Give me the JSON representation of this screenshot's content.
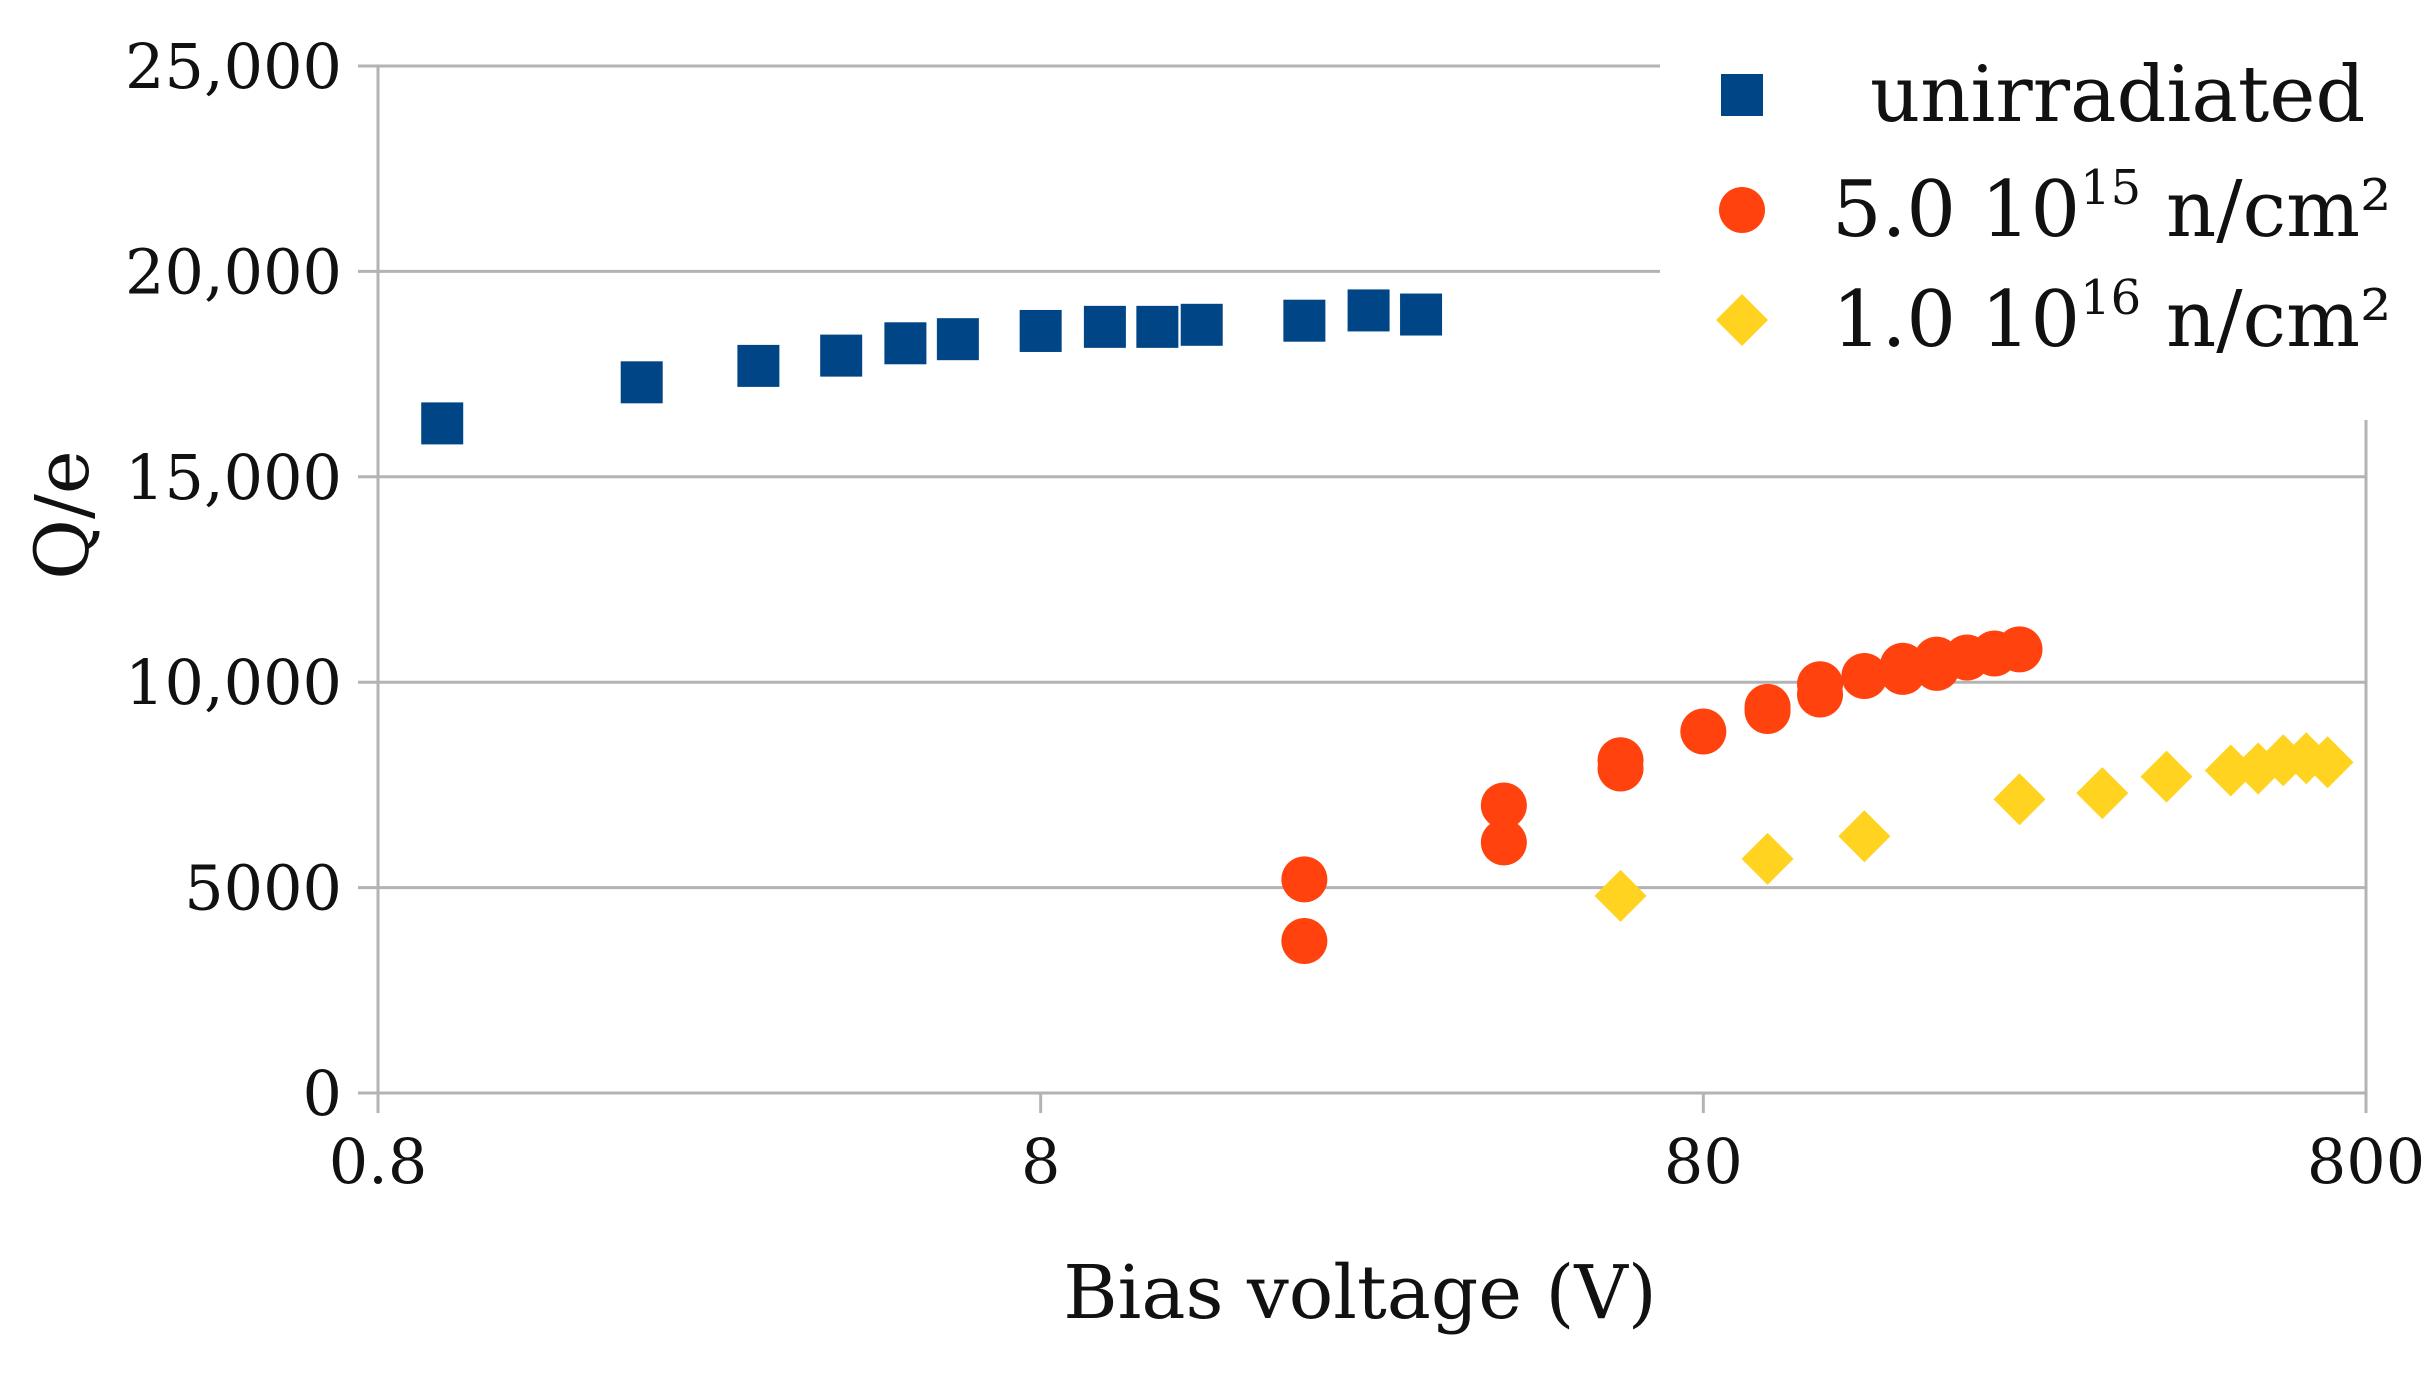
{
  "chart_data": {
    "type": "scatter",
    "title": "",
    "xlabel": "Bias voltage (V)",
    "ylabel": "Q/e",
    "xscale": "log",
    "xlim": [
      0.8,
      800
    ],
    "ylim": [
      0,
      25000
    ],
    "x_ticks": [
      0.8,
      8,
      80,
      800
    ],
    "x_tick_labels": [
      "0.8",
      "8",
      "80",
      "800"
    ],
    "y_ticks": [
      0,
      5000,
      10000,
      15000,
      20000,
      25000
    ],
    "y_tick_labels": [
      "0",
      "5000",
      "10,000",
      "15,000",
      "20,000",
      "25,000"
    ],
    "grid": "horizontal",
    "legend_position": "top-right",
    "series": [
      {
        "name": "unirradiated",
        "legend_main": "unirradiated",
        "legend_sup": "",
        "legend_suffix": "",
        "marker": "square",
        "color": "#004586",
        "x": [
          1,
          2,
          3,
          4,
          5,
          6,
          8,
          10,
          12,
          14,
          20,
          25,
          30
        ],
        "y": [
          16300,
          17300,
          17700,
          17950,
          18250,
          18350,
          18550,
          18650,
          18650,
          18700,
          18800,
          19050,
          18950
        ]
      },
      {
        "name": "5.0 10^15 n/cm^2",
        "legend_main": "5.0  10",
        "legend_sup": "15",
        "legend_suffix": " n/cm²",
        "marker": "circle",
        "color": "#ff420e",
        "x": [
          20,
          20,
          40,
          40,
          60,
          60,
          80,
          100,
          100,
          120,
          120,
          140,
          160,
          160,
          180,
          180,
          200,
          220,
          240
        ],
        "y": [
          3700,
          5200,
          6100,
          7000,
          7900,
          8100,
          8800,
          9300,
          9400,
          9700,
          9950,
          10150,
          10250,
          10400,
          10350,
          10550,
          10600,
          10700,
          10800
        ]
      },
      {
        "name": "1.0 10^16 n/cm^2",
        "legend_main": "1.0  10",
        "legend_sup": "16",
        "legend_suffix": " n/cm²",
        "marker": "diamond",
        "color": "#ffd320",
        "x": [
          60,
          100,
          140,
          240,
          320,
          400,
          500,
          550,
          600,
          650,
          700
        ],
        "y": [
          4800,
          5700,
          6250,
          7150,
          7300,
          7700,
          7850,
          7900,
          8100,
          8150,
          8050
        ]
      }
    ]
  }
}
